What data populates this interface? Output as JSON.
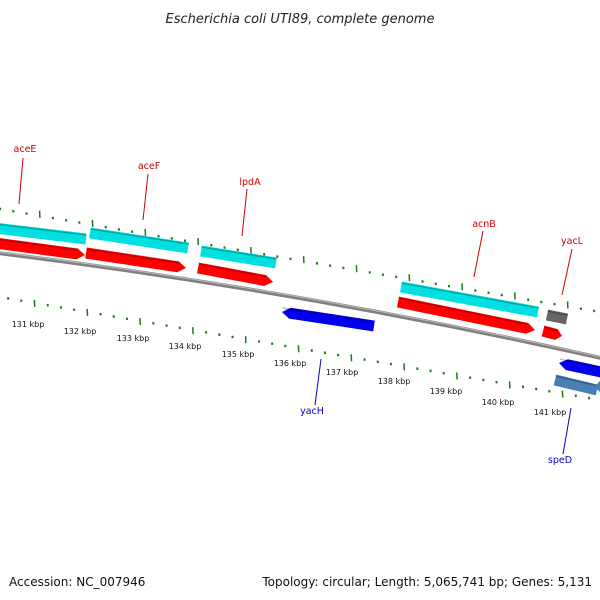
{
  "title": "Escherichia coli UTI89, complete genome",
  "footer": {
    "accession": "Accession: NC_007946",
    "topology": "Topology: circular; Length: 5,065,741 bp; Genes: 5,131"
  },
  "colors": {
    "backbone": "#808080",
    "tick": "#1a7a1a",
    "forward_cds": "#ff0000",
    "forward_gene": "#00e0e0",
    "reverse_cds": "#0000ee",
    "reverse_gene": "#4a7fb5",
    "other_gene": "#666666",
    "forward_label": "#cc0000",
    "reverse_label": "#0000cc"
  },
  "ticks": [
    {
      "label": "131 kbp"
    },
    {
      "label": "132 kbp"
    },
    {
      "label": "133 kbp"
    },
    {
      "label": "134 kbp"
    },
    {
      "label": "135 kbp"
    },
    {
      "label": "136 kbp"
    },
    {
      "label": "137 kbp"
    },
    {
      "label": "138 kbp"
    },
    {
      "label": "139 kbp"
    },
    {
      "label": "140 kbp"
    },
    {
      "label": "141 kbp"
    }
  ],
  "genes": [
    {
      "name": "aceE",
      "strand": "forward"
    },
    {
      "name": "aceF",
      "strand": "forward"
    },
    {
      "name": "lpdA",
      "strand": "forward"
    },
    {
      "name": "acnB",
      "strand": "forward"
    },
    {
      "name": "yacL",
      "strand": "forward"
    },
    {
      "name": "yacH",
      "strand": "reverse"
    },
    {
      "name": "speD",
      "strand": "reverse"
    }
  ]
}
